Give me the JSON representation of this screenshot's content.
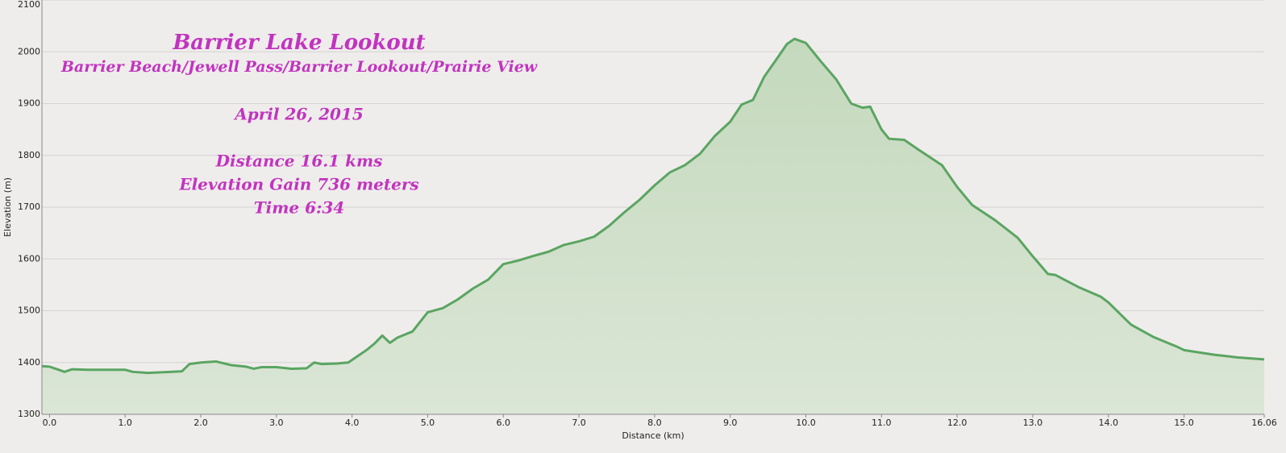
{
  "chart_data": {
    "type": "area",
    "annotations": [
      "Barrier Lake Lookout",
      "Barrier Beach/Jewell Pass/Barrier Lookout/Prairie View",
      "April 26, 2015",
      "Distance  16.1 kms",
      "Elevation Gain  736 meters",
      "Time   6:34"
    ],
    "x_label": "Distance   (km)",
    "y_label": "Elevation (m)",
    "x": [
      -0.1,
      0,
      0.1,
      0.2,
      0.3,
      0.5,
      1.0,
      1.1,
      1.3,
      1.6,
      1.75,
      1.85,
      2.0,
      2.2,
      2.4,
      2.6,
      2.7,
      2.8,
      3.0,
      3.2,
      3.4,
      3.5,
      3.6,
      3.8,
      3.95,
      4.1,
      4.2,
      4.3,
      4.4,
      4.5,
      4.6,
      4.8,
      5.0,
      5.2,
      5.4,
      5.6,
      5.8,
      6.0,
      6.2,
      6.4,
      6.6,
      6.8,
      7.0,
      7.2,
      7.4,
      7.6,
      7.8,
      8.0,
      8.2,
      8.4,
      8.6,
      8.8,
      9.0,
      9.15,
      9.3,
      9.45,
      9.6,
      9.75,
      9.85,
      10.0,
      10.2,
      10.4,
      10.6,
      10.75,
      10.85,
      11.0,
      11.1,
      11.3,
      11.5,
      11.8,
      12.0,
      12.2,
      12.5,
      12.8,
      13.0,
      13.2,
      13.3,
      13.6,
      13.9,
      14.0,
      14.3,
      14.6,
      14.9,
      15.0,
      15.4,
      15.7,
      16.06
    ],
    "values": [
      1393,
      1392,
      1387,
      1382,
      1387,
      1386,
      1386,
      1382,
      1380,
      1382,
      1383,
      1397,
      1400,
      1402,
      1395,
      1392,
      1388,
      1391,
      1391,
      1388,
      1389,
      1400,
      1397,
      1398,
      1400,
      1415,
      1425,
      1437,
      1452,
      1438,
      1448,
      1460,
      1497,
      1505,
      1522,
      1543,
      1560,
      1590,
      1597,
      1606,
      1614,
      1627,
      1634,
      1643,
      1664,
      1690,
      1714,
      1742,
      1767,
      1781,
      1803,
      1838,
      1865,
      1898,
      1907,
      1952,
      1983,
      2015,
      2025,
      2017,
      1981,
      1947,
      1900,
      1892,
      1894,
      1850,
      1832,
      1830,
      1810,
      1781,
      1739,
      1704,
      1675,
      1641,
      1605,
      1571,
      1569,
      1546,
      1527,
      1516,
      1473,
      1449,
      1431,
      1424,
      1415,
      1410,
      1406
    ],
    "color": "#5aa562",
    "fill": "#cfe0c9",
    "xlim": [
      -0.1,
      16.06
    ],
    "ylim": [
      1300,
      2100
    ],
    "xticks": [
      {
        "value": 0,
        "label": "0.0"
      },
      {
        "value": 1,
        "label": "1.0"
      },
      {
        "value": 2,
        "label": "2.0"
      },
      {
        "value": 3,
        "label": "3.0"
      },
      {
        "value": 4,
        "label": "4.0"
      },
      {
        "value": 5,
        "label": "5.0"
      },
      {
        "value": 6,
        "label": "6.0"
      },
      {
        "value": 7,
        "label": "7.0"
      },
      {
        "value": 8,
        "label": "8.0"
      },
      {
        "value": 9,
        "label": "9.0"
      },
      {
        "value": 10,
        "label": "10.0"
      },
      {
        "value": 11,
        "label": "11.0"
      },
      {
        "value": 12,
        "label": "12.0"
      },
      {
        "value": 13,
        "label": "13.0"
      },
      {
        "value": 14,
        "label": "14.0"
      },
      {
        "value": 15,
        "label": "15.0"
      },
      16.06
    ],
    "yticks": [
      1300,
      1400,
      1500,
      1600,
      1700,
      1800,
      1900,
      2000,
      2100
    ],
    "grid": true
  }
}
